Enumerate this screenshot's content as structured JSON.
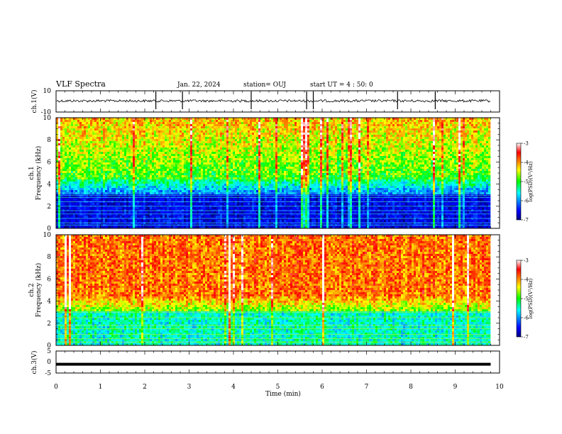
{
  "header": {
    "title": "VLF Spectra",
    "date": "Jan. 22, 2024",
    "station": "station= OUJ",
    "start": "start  UT =   4 : 50: 0"
  },
  "chart_data": [
    {
      "type": "line",
      "panel": "ch1-waveform",
      "ylabel": "ch.1(V)",
      "ylim": [
        -10,
        10
      ],
      "y_ticks": [
        "10",
        "-10"
      ],
      "baseline": 0.5,
      "x_range": [
        0,
        10
      ]
    },
    {
      "type": "heatmap",
      "panel": "ch1-spectrogram",
      "ylabel": "ch.1\nFrequency (kHz)",
      "ylim": [
        0,
        10
      ],
      "y_ticks": [
        "0",
        "2",
        "4",
        "6",
        "8",
        "10"
      ],
      "x_range": [
        0,
        10
      ],
      "data_end_min": 9.8,
      "colorbar": {
        "label": "log(PSD)(V²/Hz)",
        "range": [
          -7,
          -3
        ],
        "ticks": [
          "-3",
          "-4",
          "-5",
          "-6",
          "-7"
        ]
      }
    },
    {
      "type": "heatmap",
      "panel": "ch2-spectrogram",
      "ylabel": "ch.2\nFrequency (kHz)",
      "ylim": [
        0,
        10
      ],
      "y_ticks": [
        "0",
        "2",
        "4",
        "6",
        "8",
        "10"
      ],
      "x_range": [
        0,
        10
      ],
      "data_end_min": 9.8,
      "colorbar": {
        "label": "log(PSD)(V²/Hz)",
        "range": [
          -7,
          -3
        ],
        "ticks": [
          "-3",
          "-4",
          "-5",
          "-6",
          "-7"
        ]
      }
    },
    {
      "type": "line",
      "panel": "ch3-waveform",
      "ylabel": "ch.3(V)",
      "ylim": [
        -5,
        5
      ],
      "y_ticks": [
        "5",
        "0",
        "-5"
      ],
      "constant_value": -1,
      "x_range": [
        0,
        10
      ]
    }
  ],
  "x_axis": {
    "label": "Time (min)",
    "ticks": [
      "0",
      "1",
      "2",
      "3",
      "4",
      "5",
      "6",
      "7",
      "8",
      "9",
      "10"
    ]
  }
}
